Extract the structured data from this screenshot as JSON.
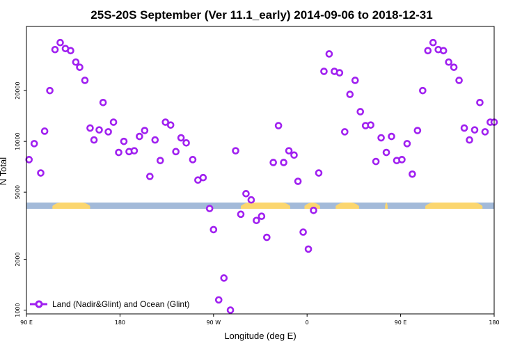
{
  "chart_data": {
    "type": "scatter",
    "title": "25S-20S September (Ver 11.1_early)   2014-09-06 to 2018-12-31",
    "xlabel": "Longitude (deg E)",
    "ylabel": "N Total",
    "y_scale": "log",
    "xlim": [
      90,
      450
    ],
    "ylim": [
      950,
      48000
    ],
    "x_ticks": [
      {
        "value": 90,
        "label": "90 E"
      },
      {
        "value": 162,
        "label": "180"
      },
      {
        "value": 234,
        "label": "90 W"
      },
      {
        "value": 306,
        "label": "0"
      },
      {
        "value": 378,
        "label": "90 E"
      },
      {
        "value": 450,
        "label": "180"
      }
    ],
    "y_ticks": [
      {
        "value": 1000,
        "label": "1000"
      },
      {
        "value": 2000,
        "label": "2000"
      },
      {
        "value": 5000,
        "label": "5000"
      },
      {
        "value": 10000,
        "label": "10000"
      },
      {
        "value": 20000,
        "label": "20000"
      }
    ],
    "land_ocean_strip": {
      "ocean_color": "#a3bad9",
      "land_color": "#fbd66f",
      "land_segments": [
        [
          110,
          139
        ],
        [
          255,
          293
        ],
        [
          304,
          316
        ],
        [
          328,
          346
        ],
        [
          366,
          368
        ],
        [
          397,
          441
        ]
      ]
    },
    "series": [
      {
        "name": "Land (Nadir&Glint) and Ocean (Glint)",
        "color": "#a020f0",
        "x": [
          92,
          96,
          101,
          104,
          108,
          112,
          116,
          120,
          124,
          128,
          131,
          135,
          139,
          142,
          146,
          149,
          153,
          157,
          161,
          165,
          169,
          173,
          177,
          181,
          185,
          189,
          193,
          197,
          201,
          205,
          209,
          213,
          218,
          222,
          226,
          231,
          234,
          238,
          242,
          247,
          251,
          255,
          259,
          263,
          267,
          271,
          275,
          280,
          284,
          288,
          292,
          296,
          299,
          303,
          307,
          311,
          315,
          319,
          323,
          327,
          331,
          335,
          339,
          343,
          347,
          351,
          355,
          359,
          363,
          367,
          371,
          375,
          379,
          383,
          387,
          391,
          395,
          399,
          403,
          407,
          411,
          415,
          419,
          423,
          427,
          431,
          435,
          439,
          443,
          447,
          450
        ],
        "y": [
          7800,
          9700,
          6500,
          11500,
          20000,
          35000,
          38500,
          35500,
          34500,
          29500,
          27500,
          23000,
          12000,
          10200,
          11700,
          17000,
          11400,
          13000,
          8600,
          10000,
          8700,
          8800,
          10700,
          11600,
          6200,
          10200,
          7700,
          13000,
          12500,
          8700,
          10500,
          9800,
          7800,
          5900,
          6100,
          4000,
          3000,
          1150,
          1550,
          1000,
          8800,
          3700,
          4900,
          4500,
          3400,
          3600,
          2700,
          7500,
          12400,
          7500,
          8800,
          8300,
          5800,
          2900,
          2300,
          3900,
          6500,
          26000,
          33000,
          26000,
          25500,
          11400,
          19000,
          23000,
          15000,
          12400,
          12500,
          7600,
          10500,
          8600,
          10700,
          7700,
          7800,
          9700,
          6400,
          11600,
          20000,
          34500,
          38500,
          35000,
          34500,
          29500,
          27500,
          23000,
          12000,
          10200,
          11700,
          17000,
          11400,
          13000,
          13000
        ]
      }
    ]
  }
}
